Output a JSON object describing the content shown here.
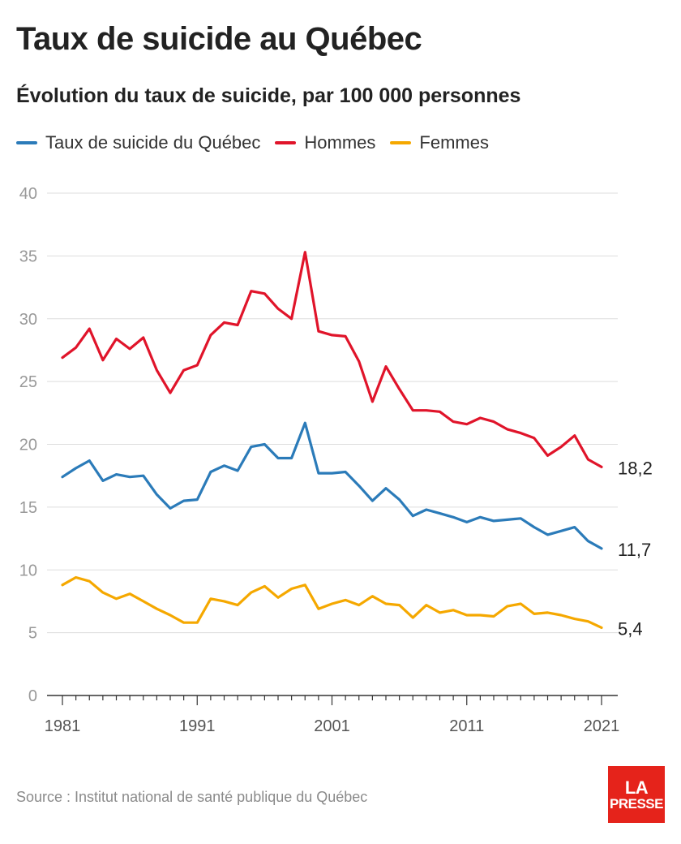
{
  "title": "Taux de suicide au Québec",
  "subtitle": "Évolution du taux de suicide, par 100 000 personnes",
  "source": "Source : Institut national de santé publique du Québec",
  "logo": {
    "line1": "LA",
    "line2": "PRESSE"
  },
  "colors": {
    "quebec": "#2b7bb9",
    "hommes": "#e0142a",
    "femmes": "#f5a800",
    "grid": "#dddddd",
    "axis": "#333333",
    "tick_text": "#999999"
  },
  "chart_data": {
    "type": "line",
    "title": "Taux de suicide au Québec",
    "subtitle": "Évolution du taux de suicide, par 100 000 personnes",
    "xlim": [
      1981,
      2021
    ],
    "ylim": [
      0,
      40
    ],
    "x_ticks": [
      1981,
      1991,
      2001,
      2011,
      2021
    ],
    "x_tick_labels": [
      "1981",
      "1991",
      "2001",
      "2011",
      "2021"
    ],
    "y_ticks": [
      0,
      5,
      10,
      15,
      20,
      25,
      30,
      35,
      40
    ],
    "y_tick_labels": [
      "0",
      "5",
      "10",
      "15",
      "20",
      "25",
      "30",
      "35",
      "40"
    ],
    "grid": true,
    "legend_position": "top-left",
    "x": [
      1981,
      1982,
      1983,
      1984,
      1985,
      1986,
      1987,
      1988,
      1989,
      1990,
      1991,
      1992,
      1993,
      1994,
      1995,
      1996,
      1997,
      1998,
      1999,
      2000,
      2001,
      2002,
      2003,
      2004,
      2005,
      2006,
      2007,
      2008,
      2009,
      2010,
      2011,
      2012,
      2013,
      2014,
      2015,
      2016,
      2017,
      2018,
      2019,
      2020,
      2021
    ],
    "series": [
      {
        "key": "hommes",
        "name": "Hommes",
        "end_label": "18,2",
        "values": [
          26.9,
          27.7,
          29.2,
          26.7,
          28.4,
          27.6,
          28.5,
          25.9,
          24.1,
          25.9,
          26.3,
          28.7,
          29.7,
          29.5,
          32.2,
          32.0,
          30.8,
          30.0,
          35.3,
          29.0,
          28.7,
          28.6,
          26.6,
          23.4,
          26.2,
          24.4,
          22.7,
          22.7,
          22.6,
          21.8,
          21.6,
          22.1,
          21.8,
          21.2,
          20.9,
          20.5,
          19.1,
          19.8,
          20.7,
          18.8,
          18.2
        ]
      },
      {
        "key": "quebec",
        "name": "Taux de suicide du Québec",
        "end_label": "11,7",
        "values": [
          17.4,
          18.1,
          18.7,
          17.1,
          17.6,
          17.4,
          17.5,
          16.0,
          14.9,
          15.5,
          15.6,
          17.8,
          18.3,
          17.9,
          19.8,
          20.0,
          18.9,
          18.9,
          21.7,
          17.7,
          17.7,
          17.8,
          16.7,
          15.5,
          16.5,
          15.6,
          14.3,
          14.8,
          14.5,
          14.2,
          13.8,
          14.2,
          13.9,
          14.0,
          14.1,
          13.4,
          12.8,
          13.1,
          13.4,
          12.3,
          11.7
        ]
      },
      {
        "key": "femmes",
        "name": "Femmes",
        "end_label": "5,4",
        "values": [
          8.8,
          9.4,
          9.1,
          8.2,
          7.7,
          8.1,
          7.5,
          6.9,
          6.4,
          5.8,
          5.8,
          7.7,
          7.5,
          7.2,
          8.2,
          8.7,
          7.8,
          8.5,
          8.8,
          6.9,
          7.3,
          7.6,
          7.2,
          7.9,
          7.3,
          7.2,
          6.2,
          7.2,
          6.6,
          6.8,
          6.4,
          6.4,
          6.3,
          7.1,
          7.3,
          6.5,
          6.6,
          6.4,
          6.1,
          5.9,
          5.4
        ]
      }
    ],
    "legend": [
      "Taux de suicide du Québec",
      "Hommes",
      "Femmes"
    ]
  }
}
